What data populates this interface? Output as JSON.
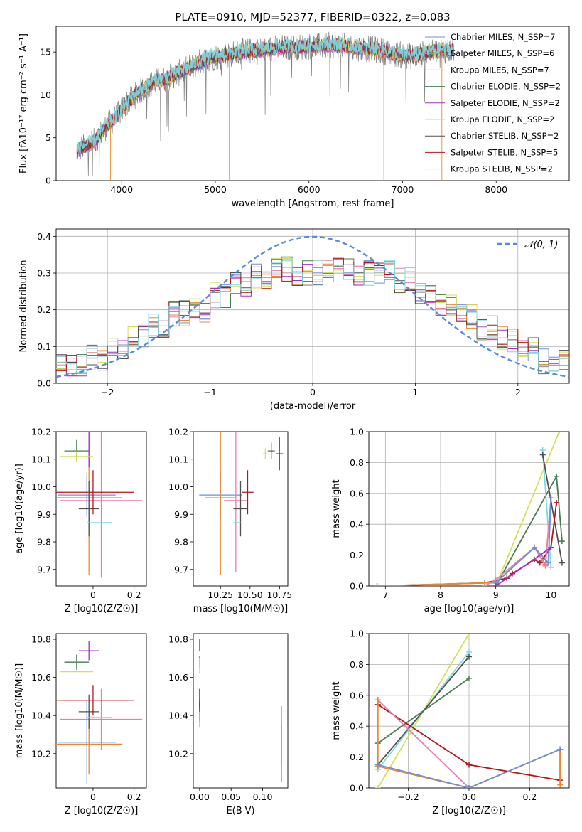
{
  "figure": {
    "title": "PLATE=0910, MJD=52377, FIBERID=0322, z=0.083"
  },
  "colors": {
    "chabrier_miles": "#6f8fd6",
    "salpeter_miles": "#e67db5",
    "kroupa_miles": "#e88a2c",
    "chabrier_elodie": "#4a7a52",
    "salpeter_elodie": "#a030c0",
    "kroupa_elodie": "#d4e05a",
    "chabrier_stelib": "#505050",
    "salpeter_stelib": "#b01818",
    "kroupa_stelib": "#7fd8e0",
    "spectrum_data": "#808080",
    "gaussian": "#5b8bd8"
  },
  "chart_data": [
    {
      "id": "spectrum",
      "type": "line",
      "xlabel": "wavelength [Angstrom, rest frame]",
      "ylabel": "Flux [fλ10⁻¹⁷ erg cm⁻² s⁻¹ A⁻¹]",
      "xlim": [
        3300,
        8780
      ],
      "ylim": [
        0,
        18
      ],
      "xticks": [
        4000,
        5000,
        6000,
        7000,
        8000
      ],
      "yticks": [
        0,
        5,
        10,
        15
      ],
      "legend_position": "upper-right",
      "legend": [
        {
          "text": "Chabrier MILES, N_SSP=7",
          "color_key": "chabrier_miles"
        },
        {
          "text": "Salpeter MILES, N_SSP=6",
          "color_key": "salpeter_miles"
        },
        {
          "text": "Kroupa MILES, N_SSP=7",
          "color_key": "kroupa_miles"
        },
        {
          "text": "Chabrier ELODIE, N_SSP=2",
          "color_key": "chabrier_elodie"
        },
        {
          "text": "Salpeter ELODIE, N_SSP=2",
          "color_key": "salpeter_elodie"
        },
        {
          "text": "Kroupa ELODIE, N_SSP=2",
          "color_key": "kroupa_elodie"
        },
        {
          "text": "Chabrier STELIB, N_SSP=2",
          "color_key": "chabrier_stelib"
        },
        {
          "text": "Salpeter STELIB, N_SSP=5",
          "color_key": "salpeter_stelib"
        },
        {
          "text": "Kroupa STELIB, N_SSP=2",
          "color_key": "kroupa_stelib"
        }
      ],
      "envelope_x": [
        3520,
        3700,
        3850,
        3950,
        4050,
        4200,
        4350,
        4500,
        4700,
        4900,
        5100,
        5300,
        5500,
        5700,
        5900,
        6100,
        6300,
        6500,
        6700,
        6900,
        7100,
        7300,
        7400
      ],
      "envelope_y": [
        3.5,
        4.5,
        6.5,
        7.5,
        9.0,
        10.5,
        11.5,
        12.0,
        13.0,
        14.2,
        14.6,
        15.0,
        15.2,
        15.5,
        15.6,
        15.7,
        15.8,
        15.5,
        15.3,
        14.8,
        14.5,
        15.0,
        15.2
      ],
      "model_x_extent": [
        3520,
        7550
      ],
      "drops": [
        {
          "x": 3880,
          "y": 0
        },
        {
          "x": 5150,
          "y": 0
        },
        {
          "x": 6800,
          "y": 0
        },
        {
          "x": 7420,
          "y": 0
        }
      ]
    },
    {
      "id": "residual-histogram",
      "type": "line",
      "xlabel": "(data-model)/error",
      "ylabel": "Normed distribution",
      "xlim": [
        -2.5,
        2.5
      ],
      "ylim": [
        0,
        0.42
      ],
      "xticks": [
        -2,
        -1,
        0,
        1,
        2
      ],
      "yticks": [
        0.0,
        0.1,
        0.2,
        0.3,
        0.4
      ],
      "grid": true,
      "legend_position": "upper-right",
      "legend": [
        {
          "text": "𝒩(0, 1)",
          "color_key": "gaussian"
        }
      ],
      "bin_edges": [
        -2.5,
        -2.2,
        -2.0,
        -1.8,
        -1.6,
        -1.4,
        -1.2,
        -1.0,
        -0.8,
        -0.6,
        -0.4,
        -0.2,
        0.0,
        0.2,
        0.4,
        0.6,
        0.8,
        1.0,
        1.2,
        1.4,
        1.6,
        1.8,
        2.0,
        2.2,
        2.5
      ],
      "bin_heights": [
        0.045,
        0.07,
        0.1,
        0.13,
        0.16,
        0.19,
        0.2,
        0.24,
        0.27,
        0.29,
        0.31,
        0.3,
        0.3,
        0.31,
        0.3,
        0.3,
        0.28,
        0.25,
        0.21,
        0.18,
        0.15,
        0.12,
        0.09,
        0.06
      ]
    },
    {
      "id": "age-vs-z",
      "type": "scatter",
      "xlabel": "Z [log10(Z/Z☉)]",
      "ylabel": "age  [log10(age/yr)]",
      "xlim": [
        -0.18,
        0.26
      ],
      "ylim": [
        9.64,
        10.2
      ],
      "xticks": [
        0.0,
        0.2
      ],
      "yticks": [
        9.7,
        9.8,
        9.9,
        10.0,
        10.1,
        10.2
      ],
      "points": [
        {
          "key": "chabrier_miles",
          "x": -0.03,
          "y": 9.97,
          "xerr": 0.14,
          "yerr": 0.08
        },
        {
          "key": "salpeter_miles",
          "x": 0.04,
          "y": 9.95,
          "xerr": 0.2,
          "yerr": 0.28
        },
        {
          "key": "kroupa_miles",
          "x": -0.02,
          "y": 9.96,
          "xerr": 0.16,
          "yerr": 0.28
        },
        {
          "key": "chabrier_elodie",
          "x": -0.08,
          "y": 10.13,
          "xerr": 0.06,
          "yerr": 0.04
        },
        {
          "key": "salpeter_elodie",
          "x": -0.02,
          "y": 10.15,
          "xerr": 0.0,
          "yerr": 0.08
        },
        {
          "key": "kroupa_elodie",
          "x": -0.08,
          "y": 10.11,
          "xerr": 0.08,
          "yerr": 0.02
        },
        {
          "key": "chabrier_stelib",
          "x": -0.02,
          "y": 9.92,
          "xerr": 0.05,
          "yerr": 0.1
        },
        {
          "key": "salpeter_stelib",
          "x": 0.0,
          "y": 9.98,
          "xerr": 0.2,
          "yerr": 0.08
        },
        {
          "key": "kroupa_stelib",
          "x": 0.03,
          "y": 9.87,
          "xerr": 0.06,
          "yerr": 0.0
        }
      ]
    },
    {
      "id": "age-vs-mass",
      "type": "scatter",
      "xlabel": "mass [log10(M/M☉)]",
      "ylabel": "",
      "xlim": [
        10.02,
        10.82
      ],
      "ylim": [
        9.64,
        10.2
      ],
      "xticks": [
        10.25,
        10.5,
        10.75
      ],
      "xtick_labels": [
        "10.25",
        "10.50",
        "10.75"
      ],
      "yticks": [
        9.7,
        9.8,
        9.9,
        10.0,
        10.1,
        10.2
      ],
      "points": [
        {
          "key": "chabrier_miles",
          "x": 10.25,
          "y": 9.97,
          "xerr": 0.18,
          "yerr": 0.08
        },
        {
          "key": "salpeter_miles",
          "x": 10.38,
          "y": 9.95,
          "xerr": 0.1,
          "yerr": 0.26
        },
        {
          "key": "kroupa_miles",
          "x": 10.25,
          "y": 9.96,
          "xerr": 0.13,
          "yerr": 0.28
        },
        {
          "key": "chabrier_elodie",
          "x": 10.68,
          "y": 10.13,
          "xerr": 0.03,
          "yerr": 0.03
        },
        {
          "key": "salpeter_elodie",
          "x": 10.75,
          "y": 10.12,
          "xerr": 0.03,
          "yerr": 0.06
        },
        {
          "key": "kroupa_elodie",
          "x": 10.63,
          "y": 10.12,
          "xerr": 0.02,
          "yerr": 0.02
        },
        {
          "key": "chabrier_stelib",
          "x": 10.42,
          "y": 9.92,
          "xerr": 0.06,
          "yerr": 0.1
        },
        {
          "key": "salpeter_stelib",
          "x": 10.48,
          "y": 9.98,
          "xerr": 0.05,
          "yerr": 0.08
        },
        {
          "key": "kroupa_stelib",
          "x": 10.39,
          "y": 9.87,
          "xerr": 0.03,
          "yerr": 0.0
        }
      ]
    },
    {
      "id": "weight-vs-age",
      "type": "line",
      "xlabel": "age  [log10(age/yr)]",
      "ylabel": "mass weight",
      "xlim": [
        6.7,
        10.33
      ],
      "ylim": [
        0,
        1
      ],
      "xticks": [
        7,
        8,
        9,
        10
      ],
      "yticks": [
        0.0,
        0.2,
        0.4,
        0.6,
        0.8,
        1.0
      ],
      "grid": true,
      "series": [
        {
          "key": "kroupa_elodie",
          "x": [
            9.0,
            10.15
          ],
          "y": [
            0.0,
            1.0
          ]
        },
        {
          "key": "chabrier_elodie",
          "x": [
            9.0,
            10.1,
            10.2
          ],
          "y": [
            0.0,
            0.71,
            0.29
          ]
        },
        {
          "key": "kroupa_stelib",
          "x": [
            9.85,
            10.0
          ],
          "y": [
            0.88,
            0.12
          ]
        },
        {
          "key": "chabrier_stelib",
          "x": [
            9.85,
            10.2
          ],
          "y": [
            0.85,
            0.15
          ]
        },
        {
          "key": "salpeter_stelib",
          "x": [
            6.85,
            8.8,
            9.2,
            9.3,
            9.7,
            9.8,
            10.0,
            10.1
          ],
          "y": [
            0.0,
            0.02,
            0.05,
            0.08,
            0.17,
            0.15,
            0.25,
            0.54
          ]
        },
        {
          "key": "kroupa_miles",
          "x": [
            6.85,
            8.8,
            9.0,
            9.7,
            9.9,
            10.0
          ],
          "y": [
            0.0,
            0.02,
            0.02,
            0.25,
            0.14,
            0.57
          ]
        },
        {
          "key": "salpeter_miles",
          "x": [
            8.8,
            9.0,
            9.7,
            9.9,
            10.0
          ],
          "y": [
            0.0,
            0.04,
            0.25,
            0.13,
            0.57
          ]
        },
        {
          "key": "chabrier_miles",
          "x": [
            9.0,
            9.7,
            9.95,
            10.0
          ],
          "y": [
            0.02,
            0.25,
            0.15,
            0.57
          ]
        },
        {
          "key": "salpeter_elodie",
          "x": [
            9.0,
            10.0
          ],
          "y": [
            0.0,
            0.25
          ]
        }
      ]
    },
    {
      "id": "mass-vs-z",
      "type": "scatter",
      "xlabel": "Z [log10(Z/Z☉)]",
      "ylabel": "mass [log10(M/M☉)]",
      "xlim": [
        -0.18,
        0.26
      ],
      "ylim": [
        10.02,
        10.83
      ],
      "xticks": [
        0.0,
        0.2
      ],
      "yticks": [
        10.2,
        10.4,
        10.6,
        10.8
      ],
      "points": [
        {
          "key": "chabrier_miles",
          "x": -0.03,
          "y": 10.26,
          "xerr": 0.14,
          "yerr": 0.22
        },
        {
          "key": "salpeter_miles",
          "x": 0.04,
          "y": 10.38,
          "xerr": 0.2,
          "yerr": 0.16
        },
        {
          "key": "kroupa_miles",
          "x": -0.02,
          "y": 10.25,
          "xerr": 0.16,
          "yerr": 0.16
        },
        {
          "key": "chabrier_elodie",
          "x": -0.08,
          "y": 10.68,
          "xerr": 0.06,
          "yerr": 0.04
        },
        {
          "key": "salpeter_elodie",
          "x": -0.02,
          "y": 10.74,
          "xerr": 0.05,
          "yerr": 0.05
        },
        {
          "key": "kroupa_elodie",
          "x": -0.08,
          "y": 10.63,
          "xerr": 0.08,
          "yerr": 0.0
        },
        {
          "key": "chabrier_stelib",
          "x": -0.02,
          "y": 10.42,
          "xerr": 0.05,
          "yerr": 0.09
        },
        {
          "key": "salpeter_stelib",
          "x": 0.0,
          "y": 10.48,
          "xerr": 0.2,
          "yerr": 0.08
        },
        {
          "key": "kroupa_stelib",
          "x": 0.03,
          "y": 10.39,
          "xerr": 0.06,
          "yerr": 0.0
        }
      ]
    },
    {
      "id": "mass-vs-ebv",
      "type": "scatter",
      "xlabel": "E(B-V)",
      "ylabel": "",
      "xlim": [
        -0.01,
        0.14
      ],
      "ylim": [
        10.02,
        10.83
      ],
      "xticks": [
        0.0,
        0.05,
        0.1
      ],
      "xtick_labels": [
        "0.00",
        "0.05",
        "0.10"
      ],
      "yticks": [
        10.2,
        10.4,
        10.6,
        10.8
      ],
      "points": [
        {
          "key": "chabrier_miles",
          "x": 0.0,
          "y": 10.42,
          "xerr": 0.0,
          "yerr": 0.06
        },
        {
          "key": "salpeter_miles",
          "x": 0.13,
          "y": 10.3,
          "xerr": 0.0,
          "yerr": 0.15
        },
        {
          "key": "kroupa_miles",
          "x": 0.13,
          "y": 10.2,
          "xerr": 0.0,
          "yerr": 0.15
        },
        {
          "key": "chabrier_elodie",
          "x": 0.0,
          "y": 10.68,
          "xerr": 0.0,
          "yerr": 0.03
        },
        {
          "key": "salpeter_elodie",
          "x": 0.0,
          "y": 10.77,
          "xerr": 0.0,
          "yerr": 0.03
        },
        {
          "key": "kroupa_elodie",
          "x": 0.0,
          "y": 10.66,
          "xerr": 0.0,
          "yerr": 0.04
        },
        {
          "key": "chabrier_stelib",
          "x": 0.0,
          "y": 10.42,
          "xerr": 0.0,
          "yerr": 0.05
        },
        {
          "key": "salpeter_stelib",
          "x": 0.0,
          "y": 10.49,
          "xerr": 0.0,
          "yerr": 0.05
        },
        {
          "key": "kroupa_stelib",
          "x": 0.0,
          "y": 10.38,
          "xerr": 0.0,
          "yerr": 0.04
        }
      ]
    },
    {
      "id": "weight-vs-z",
      "type": "line",
      "xlabel": "Z [log10(Z/Z☉)]",
      "ylabel": "mass weight",
      "xlim": [
        -0.33,
        0.33
      ],
      "ylim": [
        0,
        1
      ],
      "xticks": [
        -0.2,
        0.0,
        0.2
      ],
      "xtick_labels": [
        "−0.2",
        "0.0",
        "0.2"
      ],
      "yticks": [
        0.0,
        0.2,
        0.4,
        0.6,
        0.8,
        1.0
      ],
      "grid": true,
      "series": [
        {
          "key": "kroupa_elodie",
          "x": [
            -0.3,
            0.0
          ],
          "y": [
            0.0,
            1.0
          ]
        },
        {
          "key": "kroupa_stelib",
          "x": [
            -0.3,
            0.0
          ],
          "y": [
            0.12,
            0.88
          ]
        },
        {
          "key": "chabrier_stelib",
          "x": [
            -0.3,
            0.0
          ],
          "y": [
            0.15,
            0.85
          ]
        },
        {
          "key": "chabrier_elodie",
          "x": [
            -0.3,
            0.0
          ],
          "y": [
            0.29,
            0.71
          ]
        },
        {
          "key": "salpeter_stelib",
          "x": [
            -0.3,
            0.0,
            0.3,
            0.3
          ],
          "y": [
            0.54,
            0.15,
            0.05,
            0.25
          ]
        },
        {
          "key": "salpeter_miles",
          "x": [
            -0.3,
            0.0,
            0.3
          ],
          "y": [
            0.57,
            0.0,
            0.25
          ]
        },
        {
          "key": "kroupa_miles",
          "x": [
            -0.3,
            -0.3,
            0.0,
            0.3,
            0.3
          ],
          "y": [
            0.57,
            0.14,
            0.0,
            0.25,
            0.02
          ]
        },
        {
          "key": "chabrier_miles",
          "x": [
            -0.3,
            0.0,
            0.3
          ],
          "y": [
            0.15,
            0.0,
            0.25
          ]
        }
      ]
    }
  ]
}
